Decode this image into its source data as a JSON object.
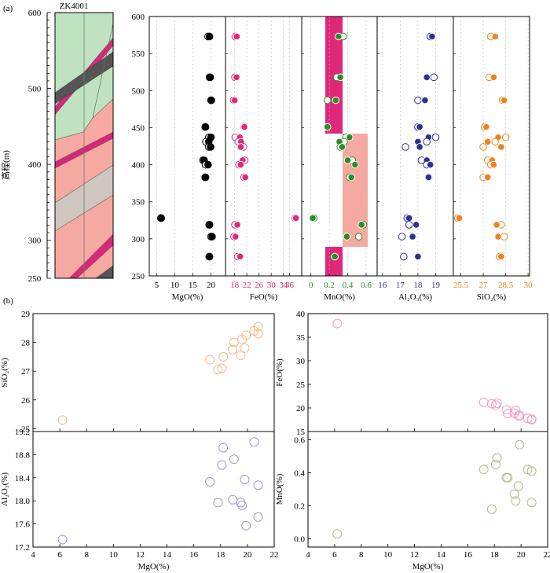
{
  "panel_a_label": "(a)",
  "panel_b_label": "(b)",
  "column_title": "ZK4001",
  "elevation_label": "高程(m)",
  "colors": {
    "mgo": "#000000",
    "feo": "#e0287a",
    "mno": "#2f8a2a",
    "al2o3": "#2e3192",
    "sio2": "#f0821e",
    "column_green": "#bfe3c0",
    "column_salmon": "#f6a9a0",
    "column_grey": "#cfc6c0",
    "dyke_magenta": "#d6287a",
    "dyke_dark": "#555555",
    "bar_magenta": "#e0287a",
    "bar_salmon": "#f6a9a0",
    "b_sio2": "#f5b98a",
    "b_feo": "#f29cc4",
    "b_al2o3": "#9a9ad6",
    "b_mno": "#b8b88e"
  },
  "chart_data": [
    {
      "type": "scatter",
      "panel": "(a)",
      "ylabel": "高程(m)",
      "ylim": [
        250,
        600
      ],
      "yticks": [
        250,
        300,
        350,
        400,
        450,
        500,
        550,
        600
      ],
      "y_samples": [
        573,
        518,
        487,
        451,
        437,
        431,
        424,
        406,
        400,
        383,
        328,
        319,
        303,
        276
      ],
      "subplots": [
        {
          "name": "MgO",
          "xlabel": "MgO(%)",
          "xlim": [
            3,
            24
          ],
          "xticks": [
            5,
            10,
            15,
            20
          ],
          "open": [
            19.2,
            19.6,
            20.0,
            18.4,
            19.4,
            18.6,
            19.4,
            17.8,
            18.5,
            18.4,
            6.2,
            19.5,
            20.0,
            19.5
          ],
          "filled": [
            19.6,
            19.8,
            20.1,
            18.5,
            20.0,
            19.4,
            19.9,
            18.1,
            19.2,
            18.5,
            6.3,
            19.6,
            20.3,
            19.6
          ]
        },
        {
          "name": "FeO",
          "xlabel": "FeO(%)",
          "xlim": [
            15,
            40
          ],
          "xticks": [
            18,
            22,
            26,
            30,
            34,
            36
          ],
          "open": [
            18.2,
            18.1,
            17.7,
            21.1,
            18.2,
            19.2,
            20.9,
            21.3,
            19.4,
            21.1,
            37.9,
            18.1,
            17.8,
            19.0
          ],
          "filled": [
            18.7,
            18.6,
            18.0,
            21.2,
            19.7,
            20.1,
            20.0,
            20.6,
            20.0,
            21.5,
            38.1,
            18.9,
            18.3,
            19.8
          ]
        },
        {
          "name": "MnO",
          "xlabel": "MnO(%)",
          "xlim": [
            -0.1,
            0.72
          ],
          "xticks": [
            0.0,
            0.2,
            0.4,
            0.6
          ],
          "open": [
            0.35,
            0.28,
            0.18,
            0.18,
            0.38,
            0.36,
            0.32,
            0.45,
            0.48,
            0.42,
            0.03,
            0.57,
            0.52,
            0.25
          ],
          "filled": [
            0.3,
            0.32,
            0.27,
            0.18,
            0.42,
            0.31,
            0.34,
            0.4,
            0.48,
            0.44,
            0.02,
            0.55,
            0.39,
            0.26
          ]
        },
        {
          "name": "Al2O3",
          "xlabel": "Al₂O₃(%)",
          "xlim": [
            15.7,
            20.0
          ],
          "xticks": [
            16,
            17,
            18,
            19
          ],
          "open": [
            18.7,
            18.9,
            18.0,
            18.0,
            19.0,
            18.5,
            17.3,
            18.2,
            18.5,
            18.6,
            17.4,
            17.5,
            17.1,
            17.2
          ],
          "filled": [
            18.8,
            18.5,
            18.4,
            18.1,
            18.6,
            18.0,
            18.1,
            18.5,
            18.7,
            18.6,
            17.5,
            17.9,
            17.7,
            18.0
          ]
        },
        {
          "name": "SiO2",
          "xlabel": "SiO₂(%)",
          "xlim": [
            25.0,
            30.1
          ],
          "xticks": [
            25.5,
            27.0,
            28.5,
            30.0
          ],
          "open": [
            27.5,
            27.4,
            28.3,
            27.1,
            28.5,
            27.8,
            27.0,
            27.3,
            27.5,
            27.0,
            25.3,
            28.2,
            28.4,
            28.1
          ],
          "filled": [
            27.8,
            27.7,
            28.4,
            27.2,
            28.0,
            27.3,
            28.2,
            27.6,
            27.7,
            27.3,
            25.4,
            27.9,
            28.0,
            28.2
          ]
        }
      ]
    },
    {
      "type": "scatter",
      "panel": "(b)",
      "x_shared": "MgO",
      "mgo": [
        6.2,
        17.2,
        17.8,
        18.1,
        18.2,
        18.9,
        19.0,
        19.5,
        19.6,
        19.8,
        19.9,
        20.5,
        20.8,
        20.8
      ],
      "subplots": [
        {
          "name": "SiO2",
          "ylabel": "SiO₂(%)",
          "xlim": [
            4,
            22
          ],
          "xticks": [
            4,
            6,
            8,
            10,
            12,
            14,
            16,
            18,
            20,
            22
          ],
          "ylim": [
            24.9,
            29
          ],
          "yticks": [
            25,
            26,
            27,
            28,
            29
          ],
          "values": [
            25.3,
            27.4,
            27.05,
            27.1,
            27.5,
            27.75,
            28.0,
            27.55,
            28.1,
            27.8,
            28.25,
            28.4,
            28.55,
            28.3
          ]
        },
        {
          "name": "FeO",
          "ylabel": "FeO(%)",
          "xlim": [
            4,
            22
          ],
          "xticks": [
            4,
            6,
            8,
            10,
            12,
            14,
            16,
            18,
            20,
            22
          ],
          "ylim": [
            15,
            40
          ],
          "yticks": [
            15,
            20,
            25,
            30,
            35,
            40
          ],
          "values": [
            37.9,
            21.2,
            20.9,
            20.6,
            21.0,
            19.6,
            18.8,
            18.9,
            19.5,
            18.3,
            18.4,
            17.8,
            17.6,
            17.5
          ]
        },
        {
          "name": "Al2O3",
          "ylabel": "Al₂O₃(%)",
          "xlim": [
            4,
            22
          ],
          "xticks": [
            4,
            6,
            8,
            10,
            12,
            14,
            16,
            18,
            20,
            22
          ],
          "ylim": [
            17.2,
            19.2
          ],
          "yticks": [
            17.2,
            17.6,
            18.0,
            18.4,
            18.8,
            19.2
          ],
          "values": [
            17.33,
            18.33,
            17.97,
            18.62,
            18.92,
            18.02,
            18.72,
            17.97,
            17.92,
            18.37,
            17.57,
            19.02,
            17.72,
            18.27
          ]
        },
        {
          "name": "MnO",
          "ylabel": "MnO(%)",
          "xlim": [
            4,
            22
          ],
          "xticks": [
            4,
            6,
            8,
            10,
            12,
            14,
            16,
            18,
            20,
            22
          ],
          "ylim": [
            -0.05,
            0.65
          ],
          "yticks": [
            0.0,
            0.2,
            0.4,
            0.6
          ],
          "values": [
            0.03,
            0.42,
            0.18,
            0.45,
            0.49,
            0.37,
            0.37,
            0.27,
            0.23,
            0.32,
            0.57,
            0.42,
            0.22,
            0.41
          ]
        }
      ]
    }
  ]
}
